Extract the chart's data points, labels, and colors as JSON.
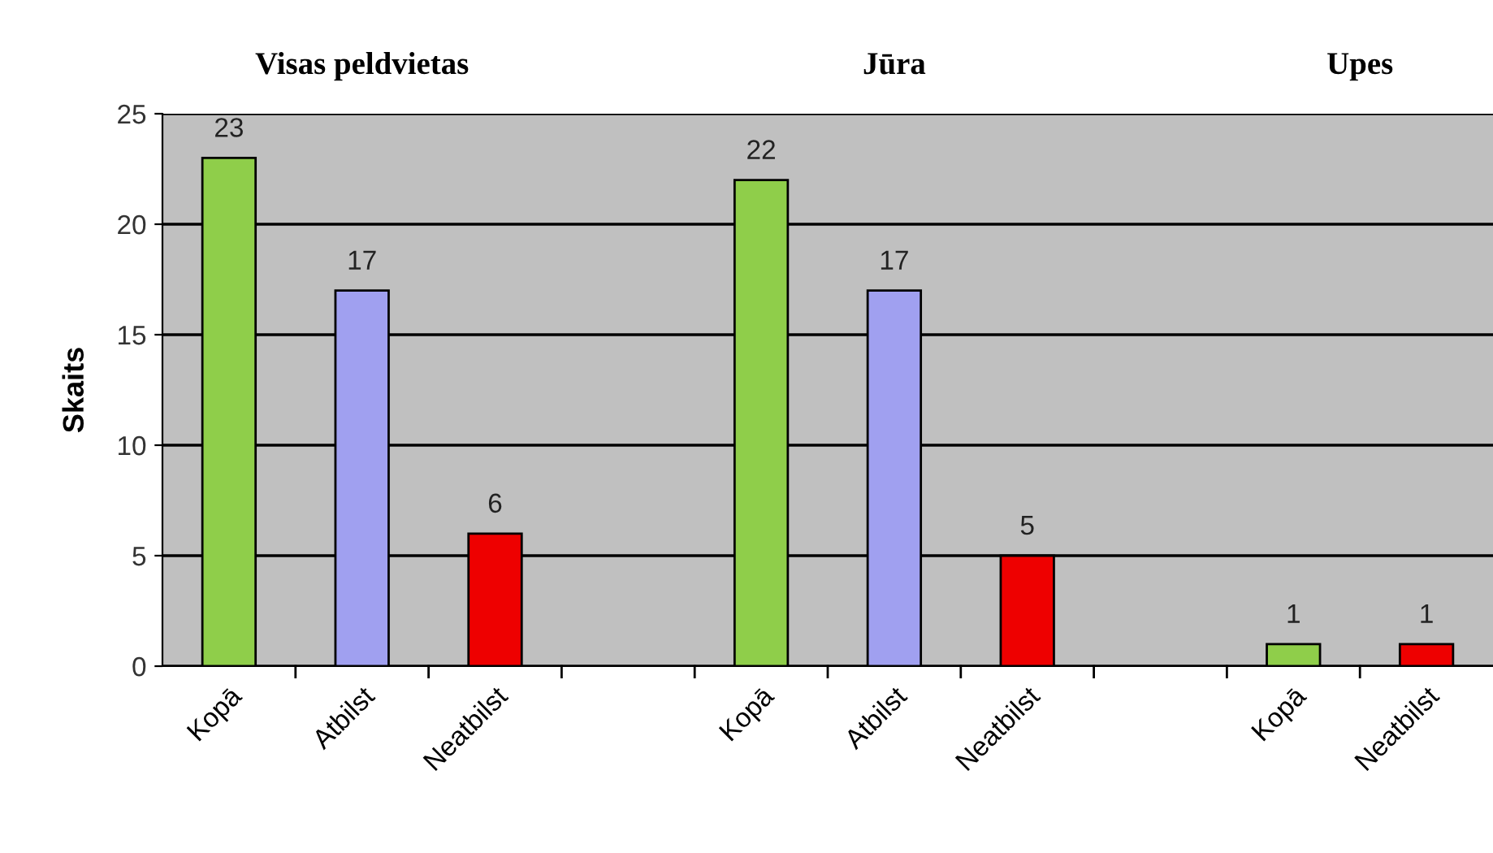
{
  "chart_data": {
    "type": "bar",
    "ylabel": "Skaits",
    "categories": [
      "Kopā",
      "Atbilst",
      "Neatbilst",
      null,
      "Kopā",
      "Atbilst",
      "Neatbilst",
      null,
      "Kopā",
      "Neatbilst"
    ],
    "values": [
      23,
      17,
      6,
      null,
      22,
      17,
      5,
      null,
      1,
      1
    ],
    "colors": [
      "#8fce4a",
      "#a0a0f0",
      "#ee0000",
      null,
      "#8fce4a",
      "#a0a0f0",
      "#ee0000",
      null,
      "#8fce4a",
      "#ee0000"
    ],
    "annotations": [
      "Visas peldvietas",
      "Jūra",
      "Upes"
    ],
    "ylim": [
      0,
      25
    ],
    "yticks": [
      0,
      5,
      10,
      15,
      20,
      25
    ],
    "grid": "y",
    "data_labels": true
  }
}
